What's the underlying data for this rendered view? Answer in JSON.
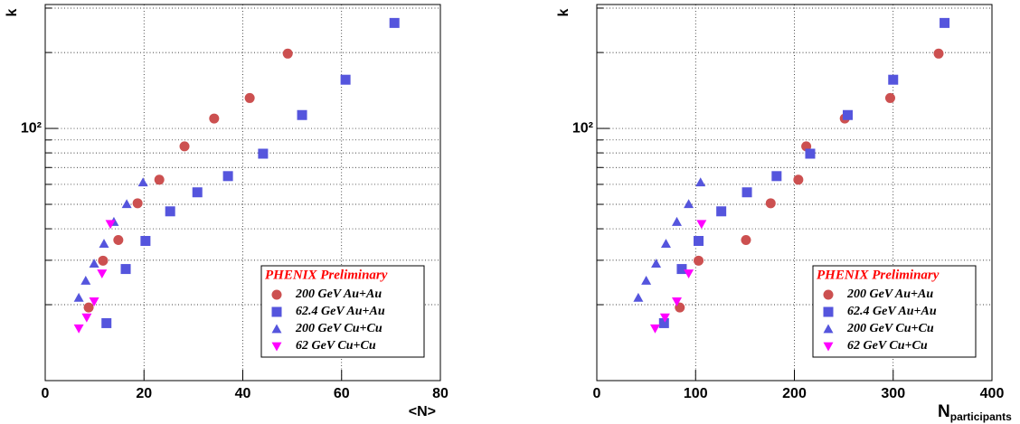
{
  "chart_data": [
    {
      "type": "scatter",
      "ylabel": "k",
      "xlabel": "<N>",
      "xlim": [
        0,
        80
      ],
      "xticks": [
        0,
        20,
        40,
        60,
        80
      ],
      "ylim": [
        10,
        310
      ],
      "log_y": true,
      "yticks": [
        {
          "value": 100,
          "label": "10²"
        }
      ],
      "y_minor_ticks": [
        20,
        30,
        40,
        50,
        60,
        70,
        80,
        90,
        200,
        300
      ],
      "grid": true,
      "legend": "bottom-right",
      "legend_title": "PHENIX Preliminary",
      "series": [
        {
          "name": "200 GeV Au+Au",
          "color": "#cc5050",
          "marker": "circle",
          "x": [
            8.8,
            11.7,
            14.8,
            18.7,
            23.1,
            28.2,
            34.2,
            41.4,
            49.1
          ],
          "values": [
            19.5,
            29.9,
            36.1,
            50.5,
            62.6,
            84.9,
            109.5,
            132,
            198
          ]
        },
        {
          "name": "62.4 GeV Au+Au",
          "color": "#5555dd",
          "marker": "square",
          "x": [
            12.4,
            16.3,
            20.3,
            25.3,
            30.8,
            37.0,
            44.1,
            52.0,
            60.8,
            70.7
          ],
          "values": [
            16.9,
            27.7,
            35.8,
            46.9,
            55.8,
            64.7,
            79.4,
            113,
            156,
            262
          ]
        },
        {
          "name": "200 GeV Cu+Cu",
          "color": "#5555dd",
          "marker": "triangle-up",
          "x": [
            6.8,
            8.2,
            9.9,
            11.9,
            13.9,
            16.5,
            19.8
          ],
          "values": [
            21.3,
            24.9,
            29.1,
            34.9,
            42.6,
            50.1,
            61.1
          ]
        },
        {
          "name": "62 GeV Cu+Cu",
          "color": "#ff00ff",
          "marker": "triangle-down",
          "x": [
            6.8,
            8.4,
            9.9,
            11.5,
            13.2
          ],
          "values": [
            16.1,
            17.8,
            20.6,
            26.6,
            41.8
          ]
        }
      ]
    },
    {
      "type": "scatter",
      "ylabel": "k",
      "xlabel": "N",
      "xlabel_subscript": "participants",
      "xlim": [
        0,
        400
      ],
      "xticks": [
        0,
        100,
        200,
        300,
        400
      ],
      "ylim": [
        10,
        310
      ],
      "log_y": true,
      "yticks": [
        {
          "value": 100,
          "label": "10²"
        }
      ],
      "y_minor_ticks": [
        20,
        30,
        40,
        50,
        60,
        70,
        80,
        90,
        200,
        300
      ],
      "grid": true,
      "legend": "bottom-right",
      "legend_title": "PHENIX Preliminary",
      "series": [
        {
          "name": "200 GeV Au+Au",
          "color": "#cc5050",
          "marker": "circle",
          "x": [
            84,
            103,
            151,
            176,
            204,
            212,
            251,
            297,
            346
          ],
          "values": [
            19.5,
            29.9,
            36.1,
            50.5,
            62.6,
            84.9,
            109.5,
            132,
            198
          ]
        },
        {
          "name": "62.4 GeV Au+Au",
          "color": "#5555dd",
          "marker": "square",
          "x": [
            68,
            86,
            103,
            126,
            152,
            182,
            216,
            254,
            300,
            352
          ],
          "values": [
            16.9,
            27.7,
            35.8,
            46.9,
            55.8,
            64.7,
            79.4,
            113,
            156,
            262
          ]
        },
        {
          "name": "200 GeV Cu+Cu",
          "color": "#5555dd",
          "marker": "triangle-up",
          "x": [
            42,
            50,
            60,
            70,
            81,
            93,
            105
          ],
          "values": [
            21.3,
            24.9,
            29.1,
            34.9,
            42.6,
            50.1,
            61.1
          ]
        },
        {
          "name": "62 GeV Cu+Cu",
          "color": "#ff00ff",
          "marker": "triangle-down",
          "x": [
            59,
            69,
            81,
            93,
            106
          ],
          "values": [
            16.1,
            17.8,
            20.6,
            26.6,
            41.8
          ]
        }
      ]
    }
  ]
}
